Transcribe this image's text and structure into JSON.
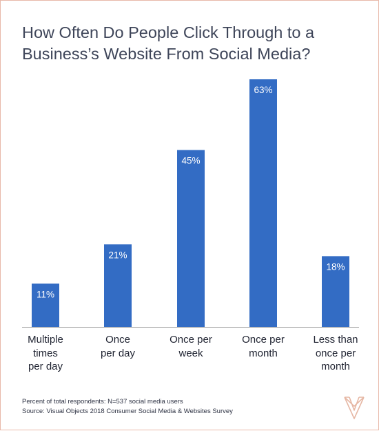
{
  "title_line1": "How Often Do People Click Through to a",
  "title_line2": "Business’s Website From Social Media?",
  "footnote_1": "Percent of total respondents: N=537 social media users",
  "footnote_2": "Source: Visual Objects 2018 Consumer Social Media & Websites Survey",
  "logo_icon": "visual-objects-v-logo",
  "colors": {
    "bar": "#336cc4",
    "baseline": "#9a9a9a",
    "logo": "#e6b7a4",
    "title": "#3e4559"
  },
  "chart_data": {
    "type": "bar",
    "categories": [
      [
        "Multiple",
        "times",
        "per day"
      ],
      [
        "Once",
        "per day"
      ],
      [
        "Once per",
        "week"
      ],
      [
        "Once per",
        "month"
      ],
      [
        "Less than",
        "once per",
        "month"
      ]
    ],
    "values": [
      11,
      21,
      45,
      63,
      18
    ],
    "data_labels": [
      "11%",
      "21%",
      "45%",
      "63%",
      "18%"
    ],
    "ylim": [
      0,
      63
    ],
    "grid": false,
    "legend": "none"
  }
}
